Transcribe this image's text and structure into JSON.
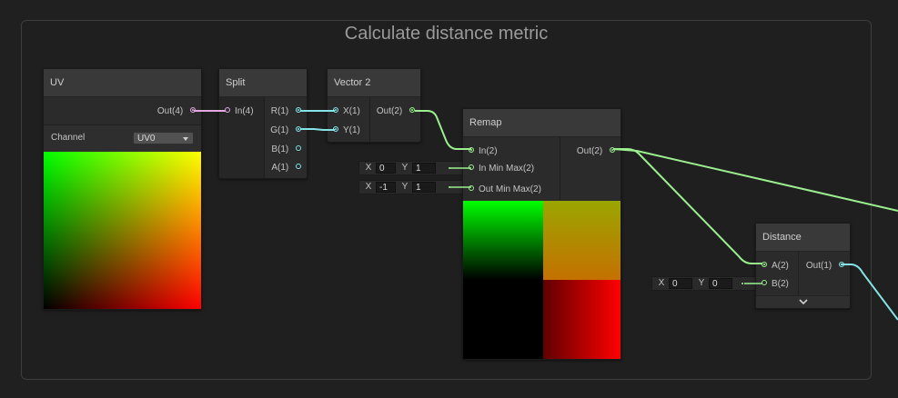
{
  "group": {
    "title": "Calculate distance metric"
  },
  "nodes": {
    "uv": {
      "title": "UV",
      "out_port": "Out(4)",
      "channel_label": "Channel",
      "channel_value": "UV0"
    },
    "split": {
      "title": "Split",
      "in_port": "In(4)",
      "out_ports": [
        "R(1)",
        "G(1)",
        "B(1)",
        "A(1)"
      ]
    },
    "vector2": {
      "title": "Vector 2",
      "in_ports": [
        "X(1)",
        "Y(1)"
      ],
      "out_port": "Out(2)"
    },
    "remap": {
      "title": "Remap",
      "in_ports": [
        "In(2)",
        "In Min Max(2)",
        "Out Min Max(2)"
      ],
      "out_port": "Out(2)"
    },
    "distance": {
      "title": "Distance",
      "in_ports": [
        "A(2)",
        "B(2)"
      ],
      "out_port": "Out(1)"
    }
  },
  "fields": {
    "in_min_max": {
      "x_label": "X",
      "x_value": "0",
      "y_label": "Y",
      "y_value": "1"
    },
    "out_min_max": {
      "x_label": "X",
      "x_value": "-1",
      "y_label": "Y",
      "y_value": "1"
    },
    "distance_b": {
      "x_label": "X",
      "x_value": "0",
      "y_label": "Y",
      "y_value": "0"
    }
  },
  "colors": {
    "vector4_port": "#e3a8e0",
    "vector1_port": "#84e4e7",
    "vector2_port": "#9bef8f"
  },
  "icons": {
    "channel_dropdown": "caret-down-icon",
    "collapse": "chevron-down-icon"
  }
}
